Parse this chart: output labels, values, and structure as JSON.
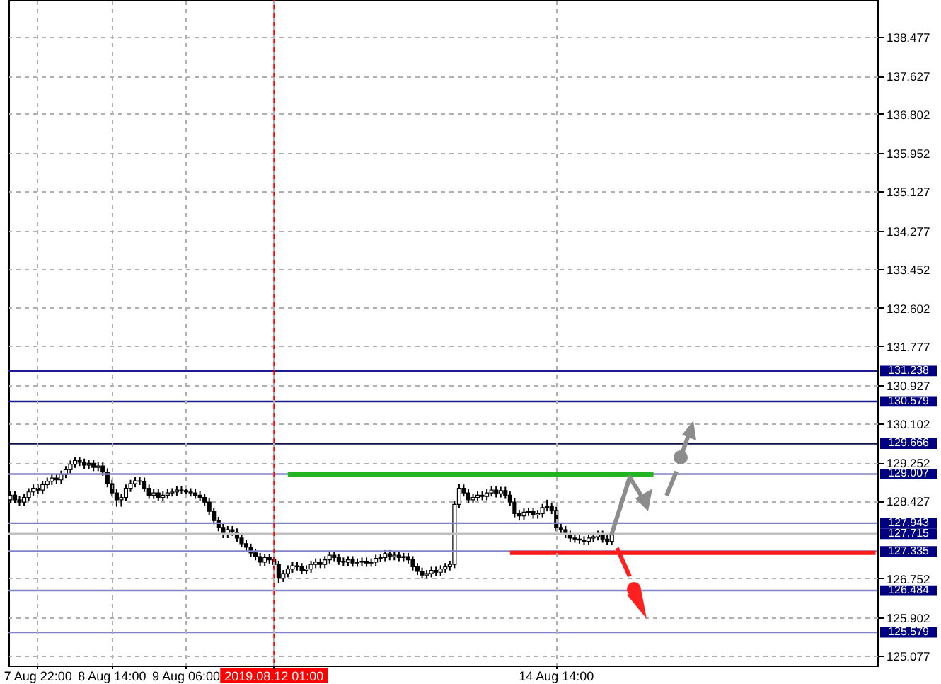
{
  "chart_data": {
    "type": "candlestick",
    "categories": [
      null,
      null,
      null,
      null,
      null,
      null,
      "7 Aug 22:00",
      null,
      null,
      null,
      null,
      null,
      null,
      null,
      null,
      null,
      null,
      null,
      null,
      null,
      null,
      null,
      "8 Aug 14:00",
      null,
      null,
      null,
      null,
      null,
      null,
      null,
      null,
      null,
      null,
      null,
      null,
      null,
      null,
      null,
      "9 Aug 06:00",
      null,
      null,
      null,
      null,
      null,
      null,
      null,
      null,
      null,
      null,
      null,
      null,
      null,
      null,
      null,
      null,
      null,
      null,
      "2019.08.12 01:00",
      null,
      null,
      null,
      null,
      null,
      null,
      null,
      null,
      null,
      null,
      null,
      null,
      null,
      null,
      null,
      null,
      null,
      null,
      null,
      null,
      null,
      null,
      null,
      null,
      null,
      null,
      null,
      null,
      null,
      null,
      null,
      null,
      null,
      null,
      null,
      null,
      null,
      null,
      null,
      null,
      null,
      null,
      null,
      null,
      null,
      null,
      null,
      null,
      null,
      null,
      null,
      null,
      null,
      null,
      null,
      null,
      null,
      null,
      null,
      null,
      "14 Aug 14:00",
      null,
      null,
      null,
      null,
      null,
      null,
      null,
      null,
      null,
      null,
      null,
      null,
      null,
      null,
      null,
      null,
      null,
      null,
      null,
      null,
      null,
      null,
      null,
      null,
      null,
      null,
      null,
      null,
      null,
      null,
      null,
      null,
      null,
      null,
      null,
      null,
      null,
      null,
      null,
      null,
      null,
      null,
      null,
      null,
      null,
      null,
      null,
      null,
      null,
      null,
      null,
      null,
      null,
      null,
      null,
      null,
      null,
      null,
      null,
      null,
      null,
      null,
      null,
      null,
      null,
      null,
      null,
      null,
      null
    ],
    "ohlc": [
      [
        128.45,
        128.63,
        128.37,
        128.55
      ],
      [
        128.55,
        128.63,
        128.37,
        128.45
      ],
      [
        128.45,
        128.53,
        128.32,
        128.4
      ],
      [
        128.4,
        128.58,
        128.32,
        128.5
      ],
      [
        128.5,
        128.7,
        128.42,
        128.62
      ],
      [
        128.62,
        128.78,
        128.54,
        128.7
      ],
      [
        128.7,
        128.78,
        128.58,
        128.66
      ],
      [
        128.66,
        128.86,
        128.58,
        128.78
      ],
      [
        128.78,
        128.93,
        128.7,
        128.85
      ],
      [
        128.85,
        129.0,
        128.77,
        128.92
      ],
      [
        128.92,
        129.0,
        128.8,
        128.88
      ],
      [
        128.88,
        129.08,
        128.8,
        129.0
      ],
      [
        129.0,
        129.18,
        128.92,
        129.1
      ],
      [
        129.1,
        129.3,
        129.02,
        129.22
      ],
      [
        129.22,
        129.38,
        129.14,
        129.3
      ],
      [
        129.3,
        129.38,
        129.18,
        129.26
      ],
      [
        129.26,
        129.34,
        129.12,
        129.2
      ],
      [
        129.2,
        129.32,
        129.12,
        129.24
      ],
      [
        129.24,
        129.32,
        129.07,
        129.15
      ],
      [
        129.15,
        129.26,
        129.07,
        129.18
      ],
      [
        129.18,
        129.26,
        128.97,
        129.05
      ],
      [
        129.05,
        129.13,
        128.72,
        128.8
      ],
      [
        128.8,
        128.88,
        128.52,
        128.6
      ],
      [
        128.6,
        128.68,
        128.3,
        128.45
      ],
      [
        128.45,
        128.58,
        128.3,
        128.5
      ],
      [
        128.5,
        128.78,
        128.42,
        128.7
      ],
      [
        128.7,
        128.88,
        128.62,
        128.8
      ],
      [
        128.8,
        128.94,
        128.72,
        128.86
      ],
      [
        128.86,
        128.94,
        128.77,
        128.85
      ],
      [
        128.85,
        128.93,
        128.62,
        128.7
      ],
      [
        128.7,
        128.78,
        128.47,
        128.55
      ],
      [
        128.55,
        128.68,
        128.47,
        128.6
      ],
      [
        128.6,
        128.68,
        128.42,
        128.5
      ],
      [
        128.5,
        128.63,
        128.42,
        128.55
      ],
      [
        128.55,
        128.68,
        128.47,
        128.6
      ],
      [
        128.6,
        128.7,
        128.52,
        128.62
      ],
      [
        128.62,
        128.74,
        128.54,
        128.66
      ],
      [
        128.66,
        128.74,
        128.57,
        128.65
      ],
      [
        128.65,
        128.73,
        128.54,
        128.62
      ],
      [
        128.62,
        128.7,
        128.52,
        128.6
      ],
      [
        128.6,
        128.68,
        128.47,
        128.55
      ],
      [
        128.55,
        128.63,
        128.42,
        128.5
      ],
      [
        128.5,
        128.58,
        128.32,
        128.4
      ],
      [
        128.4,
        128.48,
        128.12,
        128.2
      ],
      [
        128.2,
        128.28,
        127.92,
        128.0
      ],
      [
        128.0,
        128.08,
        127.77,
        127.85
      ],
      [
        127.85,
        127.93,
        127.62,
        127.7
      ],
      [
        127.7,
        127.88,
        127.62,
        127.8
      ],
      [
        127.8,
        127.88,
        127.67,
        127.75
      ],
      [
        127.75,
        127.83,
        127.54,
        127.62
      ],
      [
        127.62,
        127.7,
        127.42,
        127.5
      ],
      [
        127.5,
        127.58,
        127.34,
        127.42
      ],
      [
        127.42,
        127.5,
        127.22,
        127.3
      ],
      [
        127.3,
        127.38,
        127.14,
        127.22
      ],
      [
        127.22,
        127.3,
        127.02,
        127.1
      ],
      [
        127.1,
        127.28,
        127.02,
        127.2
      ],
      [
        127.2,
        127.28,
        127.07,
        127.15
      ],
      [
        127.15,
        127.23,
        126.97,
        127.05
      ],
      [
        127.05,
        127.13,
        126.65,
        126.75
      ],
      [
        126.75,
        126.93,
        126.67,
        126.85
      ],
      [
        126.85,
        127.03,
        126.77,
        126.95
      ],
      [
        126.95,
        127.1,
        126.87,
        127.02
      ],
      [
        127.02,
        127.1,
        126.92,
        127.0
      ],
      [
        127.0,
        127.08,
        126.84,
        126.92
      ],
      [
        126.92,
        127.03,
        126.84,
        126.95
      ],
      [
        126.95,
        127.13,
        126.87,
        127.05
      ],
      [
        127.05,
        127.18,
        126.97,
        127.1
      ],
      [
        127.1,
        127.18,
        126.97,
        127.05
      ],
      [
        127.05,
        127.23,
        126.97,
        127.15
      ],
      [
        127.15,
        127.33,
        127.07,
        127.25
      ],
      [
        127.25,
        127.33,
        127.12,
        127.2
      ],
      [
        127.2,
        127.28,
        127.04,
        127.12
      ],
      [
        127.12,
        127.2,
        127.02,
        127.1
      ],
      [
        127.1,
        127.23,
        127.02,
        127.15
      ],
      [
        127.15,
        127.23,
        127.0,
        127.08
      ],
      [
        127.08,
        127.18,
        127.0,
        127.1
      ],
      [
        127.1,
        127.2,
        127.02,
        127.12
      ],
      [
        127.12,
        127.2,
        127.0,
        127.08
      ],
      [
        127.08,
        127.18,
        127.0,
        127.1
      ],
      [
        127.1,
        127.26,
        127.02,
        127.18
      ],
      [
        127.18,
        127.28,
        127.1,
        127.2
      ],
      [
        127.2,
        127.36,
        127.12,
        127.28
      ],
      [
        127.28,
        127.36,
        127.14,
        127.22
      ],
      [
        127.22,
        127.33,
        127.14,
        127.25
      ],
      [
        127.25,
        127.33,
        127.12,
        127.2
      ],
      [
        127.2,
        127.3,
        127.12,
        127.22
      ],
      [
        127.22,
        127.3,
        127.07,
        127.15
      ],
      [
        127.15,
        127.23,
        126.92,
        127.0
      ],
      [
        127.0,
        127.08,
        126.82,
        126.9
      ],
      [
        126.9,
        126.98,
        126.74,
        126.82
      ],
      [
        126.82,
        126.93,
        126.74,
        126.85
      ],
      [
        126.85,
        127.0,
        126.77,
        126.92
      ],
      [
        126.92,
        127.0,
        126.8,
        126.88
      ],
      [
        126.88,
        127.03,
        126.8,
        126.95
      ],
      [
        126.95,
        127.08,
        126.87,
        127.0
      ],
      [
        127.0,
        127.13,
        126.92,
        127.05
      ],
      [
        127.05,
        128.43,
        126.97,
        128.35
      ],
      [
        128.35,
        128.8,
        128.27,
        128.7
      ],
      [
        128.7,
        128.78,
        128.52,
        128.6
      ],
      [
        128.6,
        128.68,
        128.37,
        128.45
      ],
      [
        128.45,
        128.58,
        128.37,
        128.5
      ],
      [
        128.5,
        128.63,
        128.42,
        128.55
      ],
      [
        128.55,
        128.63,
        128.44,
        128.52
      ],
      [
        128.52,
        128.68,
        128.44,
        128.6
      ],
      [
        128.6,
        128.74,
        128.52,
        128.66
      ],
      [
        128.66,
        128.74,
        128.5,
        128.58
      ],
      [
        128.58,
        128.73,
        128.5,
        128.65
      ],
      [
        128.65,
        128.73,
        128.47,
        128.55
      ],
      [
        128.55,
        128.63,
        128.32,
        128.4
      ],
      [
        128.4,
        128.48,
        128.07,
        128.15
      ],
      [
        128.15,
        128.23,
        128.0,
        128.1
      ],
      [
        128.1,
        128.26,
        128.02,
        128.18
      ],
      [
        128.18,
        128.28,
        128.1,
        128.2
      ],
      [
        128.2,
        128.28,
        128.04,
        128.12
      ],
      [
        128.12,
        128.23,
        128.04,
        128.15
      ],
      [
        128.15,
        128.36,
        128.07,
        128.28
      ],
      [
        128.28,
        128.45,
        128.2,
        128.3
      ],
      [
        128.3,
        128.38,
        128.14,
        128.22
      ],
      [
        128.22,
        128.3,
        127.77,
        127.85
      ],
      [
        127.85,
        127.93,
        127.72,
        127.8
      ],
      [
        127.8,
        127.88,
        127.62,
        127.7
      ],
      [
        127.7,
        127.78,
        127.54,
        127.62
      ],
      [
        127.62,
        127.7,
        127.52,
        127.6
      ],
      [
        127.6,
        127.68,
        127.5,
        127.58
      ],
      [
        127.58,
        127.66,
        127.47,
        127.55
      ],
      [
        127.55,
        127.7,
        127.47,
        127.62
      ],
      [
        127.62,
        127.73,
        127.54,
        127.65
      ],
      [
        127.65,
        127.78,
        127.57,
        127.7
      ],
      [
        127.7,
        127.78,
        127.52,
        127.6
      ],
      [
        127.6,
        127.68,
        127.47,
        127.55
      ],
      [
        127.55,
        127.78,
        127.47,
        127.715
      ],
      null,
      null,
      null,
      null,
      null,
      null,
      null,
      null,
      null,
      null,
      null,
      null,
      null,
      null,
      null,
      null,
      null,
      null,
      null,
      null,
      null,
      null,
      null,
      null,
      null,
      null,
      null,
      null,
      null,
      null,
      null,
      null,
      null,
      null,
      null,
      null,
      null,
      null,
      null,
      null,
      null,
      null,
      null,
      null,
      null,
      null,
      null,
      null,
      null,
      null,
      null,
      null,
      null,
      null,
      null,
      null,
      null
    ],
    "series": [
      {
        "type": "line",
        "color": "#22b422",
        "values": [
          null,
          null,
          null,
          null,
          null,
          null,
          null,
          null,
          null,
          null,
          null,
          null,
          null,
          null,
          null,
          null,
          null,
          null,
          null,
          null,
          null,
          null,
          null,
          null,
          null,
          null,
          null,
          null,
          null,
          null,
          null,
          null,
          null,
          null,
          null,
          null,
          null,
          null,
          null,
          null,
          null,
          null,
          null,
          null,
          null,
          null,
          null,
          null,
          null,
          null,
          null,
          null,
          null,
          null,
          null,
          null,
          null,
          null,
          null,
          null,
          129.0,
          129.0,
          129.0,
          129.0,
          129.0,
          129.0,
          129.0,
          129.0,
          129.0,
          129.0,
          129.0,
          129.0,
          129.0,
          129.0,
          129.0,
          129.0,
          129.0,
          129.0,
          129.0,
          129.0,
          129.0,
          129.0,
          129.0,
          129.0,
          129.0,
          129.0,
          129.0,
          129.0,
          129.0,
          129.0,
          129.0,
          129.0,
          129.0,
          129.0,
          129.0,
          129.0,
          129.0,
          129.0,
          129.0,
          129.0,
          129.0,
          129.0,
          129.0,
          129.0,
          129.0,
          129.0,
          129.0,
          129.0,
          129.0,
          129.0,
          129.0,
          129.0,
          129.0,
          129.0,
          129.0,
          129.0,
          129.0,
          129.0,
          129.0,
          129.0,
          129.0,
          129.0,
          129.0,
          129.0,
          129.0,
          129.0,
          129.0,
          129.0,
          129.0,
          129.0,
          129.0,
          129.0,
          129.0,
          129.0,
          129.0,
          129.0,
          129.0,
          129.0,
          129.0,
          129.0,
          null,
          null,
          null,
          null,
          null,
          null,
          null,
          null,
          null,
          null,
          null,
          null,
          null,
          null,
          null,
          null,
          null,
          null,
          null,
          null,
          null,
          null,
          null,
          null,
          null,
          null,
          null,
          null,
          null,
          null,
          null,
          null,
          null,
          null,
          null,
          null,
          null,
          null,
          null,
          null,
          null,
          null,
          null,
          null,
          null,
          null,
          null,
          null
        ]
      },
      {
        "type": "line",
        "color": "#ff1a1a",
        "values": [
          null,
          null,
          null,
          null,
          null,
          null,
          null,
          null,
          null,
          null,
          null,
          null,
          null,
          null,
          null,
          null,
          null,
          null,
          null,
          null,
          null,
          null,
          null,
          null,
          null,
          null,
          null,
          null,
          null,
          null,
          null,
          null,
          null,
          null,
          null,
          null,
          null,
          null,
          null,
          null,
          null,
          null,
          null,
          null,
          null,
          null,
          null,
          null,
          null,
          null,
          null,
          null,
          null,
          null,
          null,
          null,
          null,
          null,
          null,
          null,
          null,
          null,
          null,
          null,
          null,
          null,
          null,
          null,
          null,
          null,
          null,
          null,
          null,
          null,
          null,
          null,
          null,
          null,
          null,
          null,
          null,
          null,
          null,
          null,
          null,
          null,
          null,
          null,
          null,
          null,
          null,
          null,
          null,
          null,
          null,
          null,
          null,
          null,
          null,
          null,
          null,
          null,
          null,
          null,
          null,
          null,
          null,
          null,
          127.3,
          127.3,
          127.3,
          127.3,
          127.3,
          127.3,
          127.3,
          127.3,
          127.3,
          127.3,
          127.3,
          127.3,
          127.3,
          127.3,
          127.3,
          127.3,
          127.3,
          127.3,
          127.3,
          127.3,
          127.3,
          127.3,
          127.3,
          127.3,
          127.3,
          127.3,
          127.3,
          127.3,
          127.3,
          127.3,
          127.3,
          127.3,
          127.3,
          127.3,
          127.3,
          127.3,
          127.3,
          127.3,
          127.3,
          127.3,
          127.3,
          127.3,
          127.3,
          127.3,
          127.3,
          127.3,
          127.3,
          127.3,
          127.3,
          127.3,
          127.3,
          127.3,
          127.3,
          127.3,
          127.3,
          127.3,
          127.3,
          127.3,
          127.3,
          127.3,
          127.3,
          127.3,
          127.3,
          127.3,
          127.3,
          127.3,
          127.3,
          127.3,
          127.3,
          127.3,
          127.3,
          127.3,
          127.3,
          127.3,
          127.3,
          127.3,
          127.3,
          127.3,
          127.3,
          127.3
        ]
      }
    ],
    "ylim": [
      124.86,
      139.27
    ],
    "yticks": [
      125.077,
      125.902,
      126.752,
      128.427,
      129.252,
      130.102,
      130.927,
      131.777,
      132.602,
      133.452,
      134.277,
      135.127,
      135.952,
      136.802,
      137.627,
      138.477
    ],
    "grid": true,
    "ref_lines": [
      {
        "axis": "y",
        "value": 131.238,
        "label": "131.238",
        "color": "#1c1c8c"
      },
      {
        "axis": "y",
        "value": 130.579,
        "label": "130.579",
        "color": "#1c1c8c"
      },
      {
        "axis": "y",
        "value": 129.666,
        "label": "129.666",
        "color": "#10104a"
      },
      {
        "axis": "y",
        "value": 129.007,
        "label": "129.007",
        "color": "#8282c8"
      },
      {
        "axis": "y",
        "value": 127.943,
        "label": "127.943",
        "color": "#8282c8"
      },
      {
        "axis": "y",
        "value": 127.715,
        "label": "127.715",
        "color": "#c0c0c0"
      },
      {
        "axis": "y",
        "value": 127.335,
        "label": "127.335",
        "color": "#8282c8"
      },
      {
        "axis": "y",
        "value": 126.484,
        "label": "126.484",
        "color": "#8282c8"
      },
      {
        "axis": "y",
        "value": 125.579,
        "label": "125.579",
        "color": "#8282c8"
      },
      {
        "axis": "x",
        "value": "2019.08.12 01:00",
        "color": "#ff0000"
      }
    ]
  }
}
